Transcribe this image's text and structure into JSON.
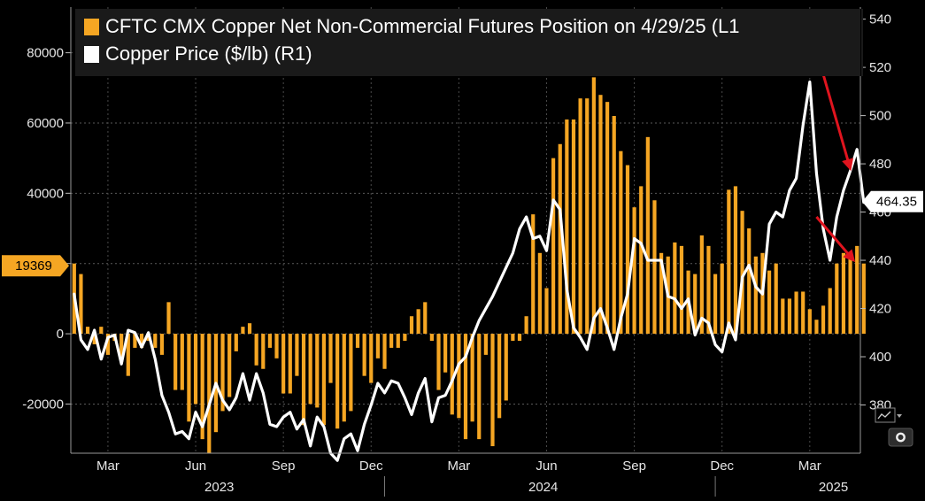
{
  "chart_data": {
    "type": "bar+line",
    "title": "",
    "legend": [
      {
        "label": "CFTC CMX Copper Net Non-Commercial Futures Position on 4/29/25 (L1",
        "color": "#f5a623",
        "kind": "bar"
      },
      {
        "label": "Copper Price ($/lb) (R1)",
        "color": "#ffffff",
        "kind": "line"
      }
    ],
    "legend_position": "top",
    "grid": true,
    "left_axis": {
      "ticks": [
        -20000,
        0,
        20000,
        40000,
        60000,
        80000
      ],
      "tick_labels": [
        "-20000",
        "0",
        "20000",
        "40000",
        "60000",
        "80000"
      ],
      "range": [
        -34000,
        93000
      ]
    },
    "right_axis": {
      "ticks": [
        380,
        400,
        420,
        440,
        460,
        480,
        500,
        520,
        540
      ],
      "tick_labels": [
        "380",
        "400",
        "420",
        "440",
        "460",
        "480",
        "500",
        "520",
        "540"
      ],
      "range": [
        360,
        545
      ]
    },
    "x_axis": {
      "month_labels": [
        {
          "label": "Mar",
          "t": 5.5
        },
        {
          "label": "Jun",
          "t": 18.5
        },
        {
          "label": "Sep",
          "t": 31.5
        },
        {
          "label": "Dec",
          "t": 44.5
        },
        {
          "label": "Mar",
          "t": 57.5
        },
        {
          "label": "Jun",
          "t": 70.5
        },
        {
          "label": "Sep",
          "t": 83.5
        },
        {
          "label": "Dec",
          "t": 96.5
        },
        {
          "label": "Mar",
          "t": 109.5
        }
      ],
      "year_labels": [
        {
          "label": "2023",
          "t": 22
        },
        {
          "label": "2024",
          "t": 70
        },
        {
          "label": "2025",
          "t": 113
        }
      ],
      "range": [
        0,
        117
      ]
    },
    "series": [
      {
        "name": "CFTC CMX Copper Net Non-Commercial Futures Position on 4/29/25 (L1",
        "type": "bar",
        "color": "#f5a623",
        "last_value": 19369,
        "values": [
          20000,
          17000,
          2000,
          -3000,
          2000,
          -6000,
          -2000,
          -8000,
          -12000,
          -4000,
          -4000,
          -2000,
          -4000,
          -6000,
          9000,
          -16000,
          -16000,
          -25000,
          -20000,
          -30000,
          -34000,
          -28000,
          -22000,
          -18000,
          -5000,
          2000,
          3000,
          -9000,
          -10000,
          -4000,
          -7000,
          -17000,
          -17000,
          -12000,
          -26000,
          -20000,
          -21000,
          -26000,
          -14000,
          -27000,
          -25000,
          -22000,
          -4000,
          -12000,
          -14000,
          -7000,
          -10000,
          -4000,
          -4000,
          -2000,
          5000,
          7000,
          9000,
          -2000,
          -16000,
          -11000,
          -23000,
          -24000,
          -30000,
          -25000,
          -30000,
          -6000,
          -32000,
          -24000,
          -19000,
          -2000,
          -2000,
          5000,
          34000,
          23000,
          13000,
          50000,
          54000,
          61000,
          61000,
          67000,
          67000,
          73000,
          68000,
          66000,
          62000,
          52000,
          48000,
          36000,
          42000,
          56000,
          38000,
          23000,
          22000,
          26000,
          25000,
          18000,
          17000,
          28000,
          25000,
          17000,
          20000,
          41000,
          42000,
          35000,
          30000,
          22000,
          23000,
          18000,
          20000,
          10000,
          10000,
          12000,
          12000,
          7000,
          4000,
          8000,
          13000,
          20000,
          23000,
          23000,
          25000,
          20000
        ],
        "_note_unused": ""
      },
      {
        "name": "Copper Price ($/lb) (R1)",
        "type": "line",
        "color": "#ffffff",
        "last_value": 464.35,
        "values": [
          426,
          407,
          403,
          411,
          399,
          408,
          409,
          397,
          411,
          410,
          404,
          410,
          399,
          384,
          377,
          368,
          369,
          366,
          377,
          371,
          380,
          389,
          382,
          378,
          383,
          393,
          382,
          393,
          385,
          372,
          371,
          375,
          377,
          370,
          374,
          363,
          375,
          371,
          360,
          357,
          366,
          368,
          361,
          372,
          380,
          389,
          385,
          390,
          389,
          383,
          376,
          385,
          391,
          373,
          383,
          384,
          390,
          397,
          400,
          408,
          415,
          420,
          425,
          431,
          437,
          443,
          453,
          458,
          449,
          450,
          444,
          465,
          461,
          428,
          412,
          408,
          403,
          416,
          420,
          412,
          403,
          416,
          426,
          449,
          447,
          440,
          440,
          440,
          425,
          424,
          420,
          424,
          409,
          416,
          414,
          405,
          402,
          414,
          407,
          433,
          438,
          429,
          426,
          455,
          460,
          458,
          469,
          474,
          496,
          514,
          476,
          453,
          440,
          458,
          469,
          477,
          486,
          464,
          464
        ]
      }
    ],
    "annotations": [
      {
        "type": "arrow",
        "color": "#e0141e",
        "from": [
          111.2,
          520
        ],
        "to": [
          115.5,
          478
        ],
        "axis": "right"
      },
      {
        "type": "arrow",
        "color": "#e0141e",
        "from": [
          110.5,
          458
        ],
        "to": [
          116,
          440
        ],
        "axis": "right"
      }
    ]
  },
  "ui": {
    "last_bar_label": "19369",
    "last_price_label": "464.35",
    "chart_icon": "chart-menu-icon",
    "gear_icon": "settings-icon"
  }
}
